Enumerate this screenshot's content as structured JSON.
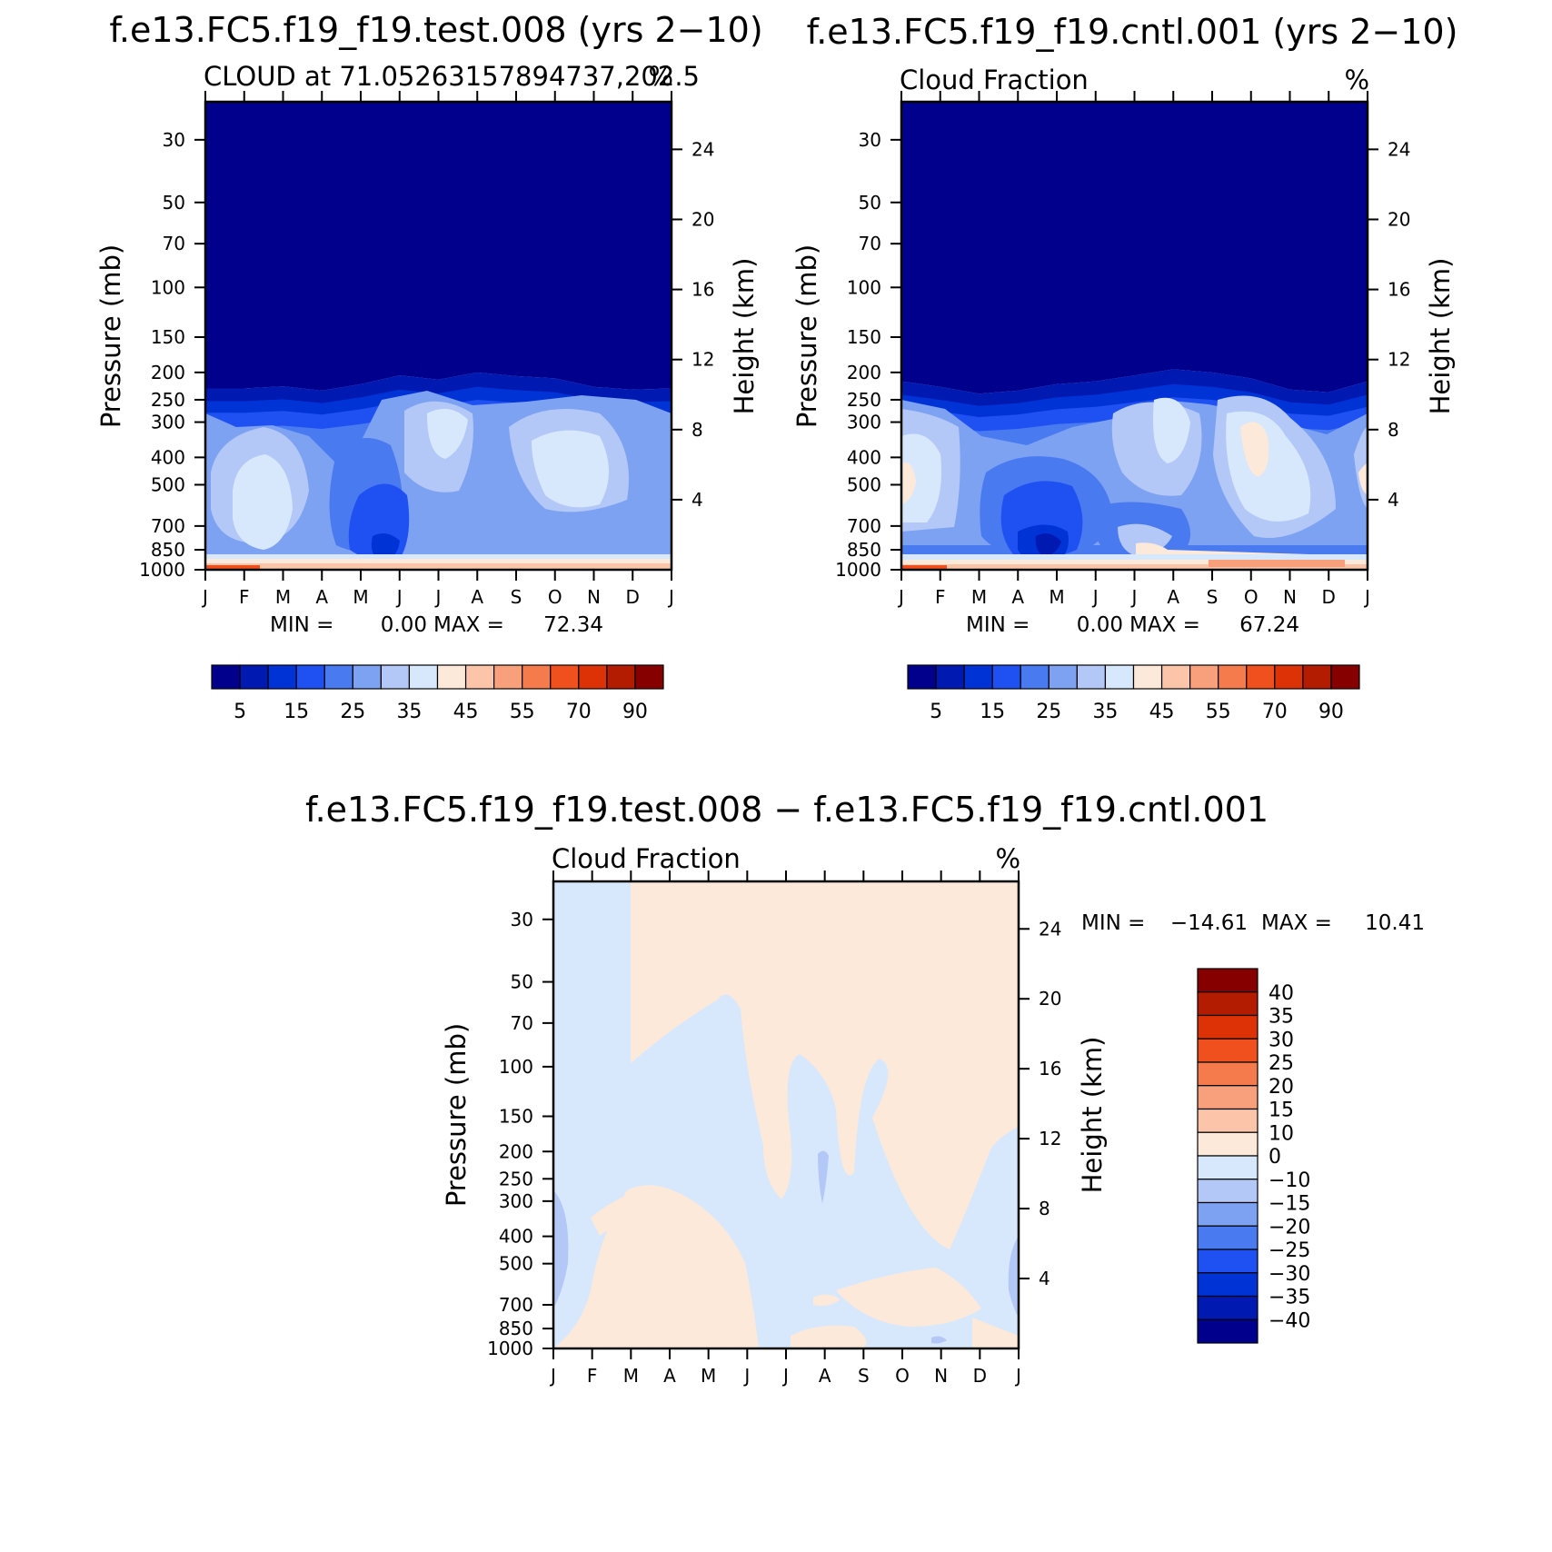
{
  "chart_data": [
    {
      "type": "heatmap",
      "title": "f.e13.FC5.f19_f19.test.008 (yrs 2−10)",
      "subtitle_left": "CLOUD at 71.05263157894737,202.5",
      "subtitle_right": "%",
      "ylabel": "Pressure (mb)",
      "ylabel_right": "Height (km)",
      "x_ticks": [
        "J",
        "F",
        "M",
        "A",
        "M",
        "J",
        "J",
        "A",
        "S",
        "O",
        "N",
        "D",
        "J"
      ],
      "y_ticks": [
        "30",
        "50",
        "70",
        "100",
        "150",
        "200",
        "250",
        "300",
        "400",
        "500",
        "700",
        "850",
        "1000"
      ],
      "y_ticks_right": [
        "24",
        "20",
        "16",
        "12",
        "8",
        "4"
      ],
      "ylim": [
        1000,
        22
      ],
      "min_label": "MIN =",
      "min_value": "0.00",
      "max_label": "MAX =",
      "max_value": "72.34",
      "colorbar": {
        "orientation": "horizontal",
        "labels": [
          "5",
          "15",
          "25",
          "35",
          "45",
          "55",
          "70",
          "90"
        ],
        "colors": [
          "#00008c",
          "#0019b0",
          "#0033d6",
          "#1f50f2",
          "#4a7af0",
          "#7ea2f2",
          "#b3c8f7",
          "#d8e8fc",
          "#fde9d9",
          "#fcc5aa",
          "#f8a07c",
          "#f57a4c",
          "#f0501e",
          "#dc3205",
          "#b41c00",
          "#870000"
        ]
      },
      "cloud_base_profile": [
        228,
        228,
        224,
        232,
        220,
        205,
        212,
        200,
        206,
        210,
        225,
        230,
        228
      ]
    },
    {
      "type": "heatmap",
      "title": "f.e13.FC5.f19_f19.cntl.001 (yrs 2−10)",
      "subtitle_left": "Cloud Fraction",
      "subtitle_right": "%",
      "ylabel": "Pressure (mb)",
      "ylabel_right": "Height (km)",
      "x_ticks": [
        "J",
        "F",
        "M",
        "A",
        "M",
        "J",
        "J",
        "A",
        "S",
        "O",
        "N",
        "D",
        "J"
      ],
      "y_ticks": [
        "30",
        "50",
        "70",
        "100",
        "150",
        "200",
        "250",
        "300",
        "400",
        "500",
        "700",
        "850",
        "1000"
      ],
      "y_ticks_right": [
        "24",
        "20",
        "16",
        "12",
        "8",
        "4"
      ],
      "ylim": [
        1000,
        22
      ],
      "min_label": "MIN =",
      "min_value": "0.00",
      "max_label": "MAX =",
      "max_value": "67.24",
      "colorbar": {
        "orientation": "horizontal",
        "labels": [
          "5",
          "15",
          "25",
          "35",
          "45",
          "55",
          "70",
          "90"
        ],
        "colors": [
          "#00008c",
          "#0019b0",
          "#0033d6",
          "#1f50f2",
          "#4a7af0",
          "#7ea2f2",
          "#b3c8f7",
          "#d8e8fc",
          "#fde9d9",
          "#fcc5aa",
          "#f8a07c",
          "#f57a4c",
          "#f0501e",
          "#dc3205",
          "#b41c00",
          "#870000"
        ]
      },
      "cloud_base_profile": [
        215,
        225,
        238,
        232,
        220,
        215,
        205,
        195,
        200,
        210,
        230,
        235,
        215
      ]
    },
    {
      "type": "heatmap",
      "title": "f.e13.FC5.f19_f19.test.008 − f.e13.FC5.f19_f19.cntl.001",
      "subtitle_left": "Cloud Fraction",
      "subtitle_right": "%",
      "ylabel": "Pressure (mb)",
      "ylabel_right": "Height (km)",
      "x_ticks": [
        "J",
        "F",
        "M",
        "A",
        "M",
        "J",
        "J",
        "A",
        "S",
        "O",
        "N",
        "D",
        "J"
      ],
      "y_ticks": [
        "30",
        "50",
        "70",
        "100",
        "150",
        "200",
        "250",
        "300",
        "400",
        "500",
        "700",
        "850",
        "1000"
      ],
      "y_ticks_right": [
        "24",
        "20",
        "16",
        "12",
        "8",
        "4"
      ],
      "ylim": [
        1000,
        22
      ],
      "min_label": "MIN =",
      "min_value": "−14.61",
      "max_label": "MAX =",
      "max_value": "10.41",
      "colorbar": {
        "orientation": "vertical",
        "labels": [
          "40",
          "35",
          "30",
          "25",
          "20",
          "15",
          "10",
          "0",
          "−10",
          "−15",
          "−20",
          "−25",
          "−30",
          "−35",
          "−40"
        ],
        "colors": [
          "#870000",
          "#b41c00",
          "#dc3205",
          "#f0501e",
          "#f57a4c",
          "#f8a07c",
          "#fcc5aa",
          "#fde9d9",
          "#d8e8fc",
          "#b3c8f7",
          "#7ea2f2",
          "#4a7af0",
          "#1f50f2",
          "#0033d6",
          "#0019b0",
          "#00008c"
        ]
      }
    }
  ]
}
